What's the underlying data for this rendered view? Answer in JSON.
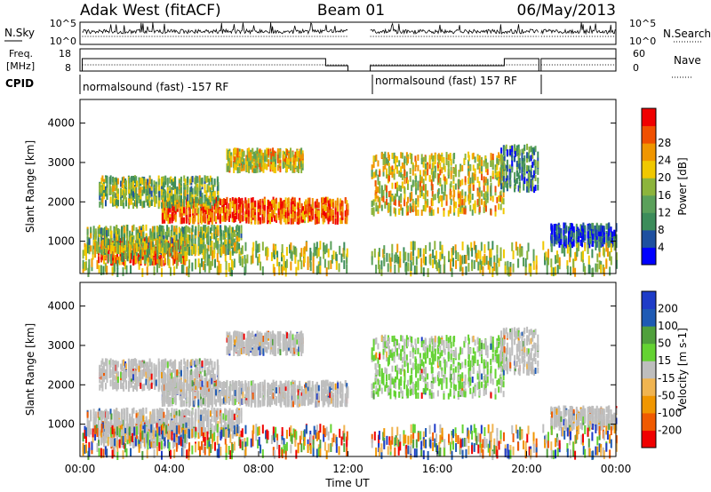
{
  "header": {
    "radar": "Adak West (fitACF)",
    "beam": "Beam 01",
    "date": "06/May/2013"
  },
  "noise_panel": {
    "left_label": "N.Sky",
    "right_label": "N.Search",
    "ticks_left": [
      "10^5",
      "10^0"
    ],
    "ticks_right": [
      "10^5",
      "10^0"
    ]
  },
  "freq_panel": {
    "left_label_1": "Freq.",
    "left_label_2": "[MHz]",
    "right_label": "Nave",
    "ticks_left": [
      "18",
      "8"
    ],
    "ticks_right": [
      "60",
      "0"
    ]
  },
  "cpid": {
    "label": "CPID",
    "segments": [
      {
        "text": "normalsound (fast) -157 RF",
        "start_hr": 0.0,
        "end_hr": 12.0
      },
      {
        "text": "normalsound (fast) 157 RF",
        "start_hr": 13.0,
        "end_hr": 24.0
      }
    ]
  },
  "colors": {
    "power": [
      "#0000ff",
      "#1e50a0",
      "#3c8c5a",
      "#5aa05a",
      "#8cb43c",
      "#f0c800",
      "#f09600",
      "#f05000",
      "#f00000"
    ],
    "velocity": [
      "#f00000",
      "#f05a00",
      "#f09600",
      "#f0b450",
      "#bebebe",
      "#64d232",
      "#50a03c",
      "#1e5ab4",
      "#1e3cc8"
    ]
  },
  "chart_data": [
    {
      "type": "heatmap",
      "panel": "power",
      "ylabel": "Slant Range [km]",
      "yticks": [
        1000,
        2000,
        3000,
        4000
      ],
      "ylim": [
        180,
        4600
      ],
      "xlim": [
        0,
        24
      ],
      "colorbar_label": "Power [dB]",
      "colorbar_ticks": [
        "4",
        "8",
        "12",
        "16",
        "20",
        "24",
        "28"
      ],
      "clim": [
        0,
        30
      ],
      "echo_regions": [
        {
          "t0": 0.8,
          "t1": 4.8,
          "r0": 450,
          "r1": 1050,
          "level": 0.9
        },
        {
          "t0": 0.3,
          "t1": 7.2,
          "r0": 700,
          "r1": 1350,
          "level": 0.45
        },
        {
          "t0": 3.6,
          "t1": 12.0,
          "r0": 1500,
          "r1": 2050,
          "level": 0.8
        },
        {
          "t0": 0.8,
          "t1": 6.2,
          "r0": 1900,
          "r1": 2600,
          "level": 0.45
        },
        {
          "t0": 6.5,
          "t1": 10.0,
          "r0": 2800,
          "r1": 3300,
          "level": 0.6
        },
        {
          "t0": 13.0,
          "t1": 19.0,
          "r0": 1700,
          "r1": 3200,
          "level": 0.6
        },
        {
          "t0": 18.8,
          "t1": 20.5,
          "r0": 2300,
          "r1": 3400,
          "level": 0.3
        },
        {
          "t0": 21.0,
          "t1": 24.0,
          "r0": 900,
          "r1": 1400,
          "level": 0.15
        },
        {
          "t0": 0.0,
          "t1": 24.0,
          "r0": 200,
          "r1": 900,
          "level": 0.5
        }
      ]
    },
    {
      "type": "heatmap",
      "panel": "velocity",
      "xlabel": "Time UT",
      "ylabel": "Slant Range [km]",
      "yticks": [
        1000,
        2000,
        3000,
        4000
      ],
      "ylim": [
        180,
        4600
      ],
      "xlim": [
        0,
        24
      ],
      "xticks": [
        "00:00",
        "04:00",
        "08:00",
        "12:00",
        "16:00",
        "20:00",
        "00:00"
      ],
      "colorbar_label": "Velocity [m s-1]",
      "colorbar_ticks": [
        "-200",
        "-100",
        "-50",
        "-15",
        "15",
        "50",
        "100",
        "200"
      ],
      "clim": [
        -250,
        250
      ]
    }
  ]
}
